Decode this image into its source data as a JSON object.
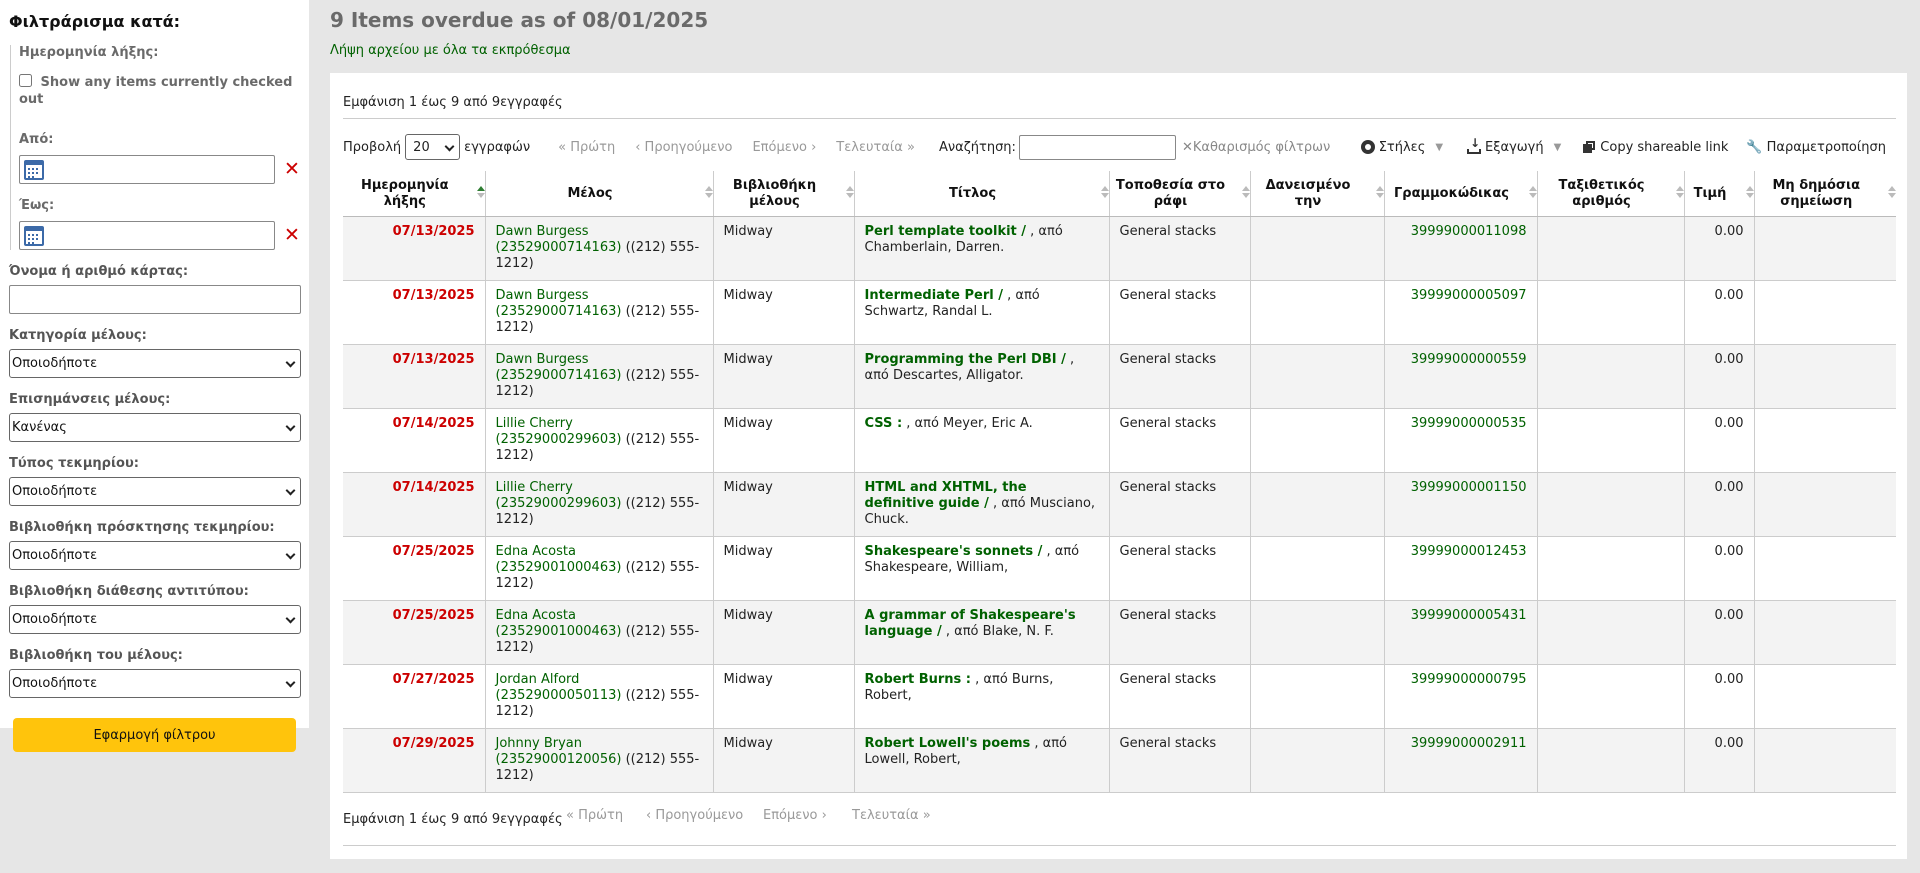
{
  "sidebar": {
    "heading": "Φιλτράρισμα κατά:",
    "due_date_label": "Ημερομηνία λήξης:",
    "checkbox_label": "Show any items currently checked out",
    "from_label": "Από:",
    "to_label": "Έως:",
    "name_card_label": "Όνομα ή αριθμό κάρτας:",
    "filters": [
      {
        "label": "Κατηγορία μέλους:",
        "value": "Οποιοδήποτε"
      },
      {
        "label": "Επισημάνσεις μέλους:",
        "value": "Κανένας"
      },
      {
        "label": "Τύπος τεκμηρίου:",
        "value": "Οποιοδήποτε"
      },
      {
        "label": "Βιβλιοθήκη πρόσκτησης τεκμηρίου:",
        "value": "Οποιοδήποτε"
      },
      {
        "label": "Βιβλιοθήκη διάθεσης αντιτύπου:",
        "value": "Οποιοδήποτε"
      },
      {
        "label": "Βιβλιοθήκη του μέλους:",
        "value": "Οποιοδήποτε"
      }
    ],
    "apply_button": "Εφαρμογή φίλτρου"
  },
  "main": {
    "title": "9 Items overdue as of 08/01/2025",
    "download_link": "Λήψη αρχείου με όλα τα εκπρόθεσμα",
    "info_text": "Εμφάνιση 1 έως 9 από 9εγγραφές",
    "show_label": "Προβολή",
    "page_size": "20",
    "records_label": "εγγραφών",
    "pagination": {
      "first": "« Πρώτη",
      "previous": "‹ Προηγούμενο",
      "next": "Επόμενο ›",
      "last": "Τελευταία »"
    },
    "search_label": "Αναζήτηση:",
    "clear_filters": "Καθαρισμός φίλτρων",
    "columns_btn": "Στήλες",
    "export_btn": "Εξαγωγή",
    "copy_link_btn": "Copy shareable link",
    "configure_btn": "Παραμετροποίηση"
  },
  "table": {
    "headers": [
      "Ημερομηνία λήξης",
      "Μέλος",
      "Βιβλιοθήκη μέλους",
      "Τίτλος",
      "Τοποθεσία στο ράφι",
      "Δανεισμένο την",
      "Γραμμοκώδικας",
      "Ταξιθετικός αριθμός",
      "Τιμή",
      "Μη δημόσια σημείωση"
    ],
    "rows": [
      {
        "due": "07/13/2025",
        "patron": "Dawn Burgess (23529000714163)",
        "phone": "((212) 555-1212)",
        "library": "Midway",
        "title": "Perl template toolkit /",
        "author": ", από Chamberlain, Darren.",
        "location": "General stacks",
        "checked_out": "",
        "barcode": "39999000011098",
        "callnumber": "",
        "price": "0.00",
        "note": ""
      },
      {
        "due": "07/13/2025",
        "patron": "Dawn Burgess (23529000714163)",
        "phone": "((212) 555-1212)",
        "library": "Midway",
        "title": "Intermediate Perl /",
        "author": ", από Schwartz, Randal L.",
        "location": "General stacks",
        "checked_out": "",
        "barcode": "39999000005097",
        "callnumber": "",
        "price": "0.00",
        "note": ""
      },
      {
        "due": "07/13/2025",
        "patron": "Dawn Burgess (23529000714163)",
        "phone": "((212) 555-1212)",
        "library": "Midway",
        "title": "Programming the Perl DBI /",
        "author": ", από Descartes, Alligator.",
        "location": "General stacks",
        "checked_out": "",
        "barcode": "39999000000559",
        "callnumber": "",
        "price": "0.00",
        "note": ""
      },
      {
        "due": "07/14/2025",
        "patron": "Lillie Cherry (23529000299603)",
        "phone": "((212) 555-1212)",
        "library": "Midway",
        "title": "CSS :",
        "author": ", από Meyer, Eric A.",
        "location": "General stacks",
        "checked_out": "",
        "barcode": "39999000000535",
        "callnumber": "",
        "price": "0.00",
        "note": ""
      },
      {
        "due": "07/14/2025",
        "patron": "Lillie Cherry (23529000299603)",
        "phone": "((212) 555-1212)",
        "library": "Midway",
        "title": "HTML and XHTML, the definitive guide /",
        "author": ", από Musciano, Chuck.",
        "location": "General stacks",
        "checked_out": "",
        "barcode": "39999000001150",
        "callnumber": "",
        "price": "0.00",
        "note": ""
      },
      {
        "due": "07/25/2025",
        "patron": "Edna Acosta (23529001000463)",
        "phone": "((212) 555-1212)",
        "library": "Midway",
        "title": "Shakespeare's sonnets /",
        "author": ", από Shakespeare, William,",
        "location": "General stacks",
        "checked_out": "",
        "barcode": "39999000012453",
        "callnumber": "",
        "price": "0.00",
        "note": ""
      },
      {
        "due": "07/25/2025",
        "patron": "Edna Acosta (23529001000463)",
        "phone": "((212) 555-1212)",
        "library": "Midway",
        "title": "A grammar of Shakespeare's language /",
        "author": ", από Blake, N. F.",
        "location": "General stacks",
        "checked_out": "",
        "barcode": "39999000005431",
        "callnumber": "",
        "price": "0.00",
        "note": ""
      },
      {
        "due": "07/27/2025",
        "patron": "Jordan Alford (23529000050113)",
        "phone": "((212) 555-1212)",
        "library": "Midway",
        "title": "Robert Burns :",
        "author": ", από Burns, Robert,",
        "location": "General stacks",
        "checked_out": "",
        "barcode": "39999000000795",
        "callnumber": "",
        "price": "0.00",
        "note": ""
      },
      {
        "due": "07/29/2025",
        "patron": "Johnny Bryan (23529000120056)",
        "phone": "((212) 555-1212)",
        "library": "Midway",
        "title": "Robert Lowell's poems",
        "author": ", από Lowell, Robert,",
        "location": "General stacks",
        "checked_out": "",
        "barcode": "39999000002911",
        "callnumber": "",
        "price": "0.00",
        "note": ""
      }
    ]
  },
  "colors": {
    "accent": "#006100",
    "overdue": "#cc0000",
    "apply_button": "#ffc40c"
  }
}
